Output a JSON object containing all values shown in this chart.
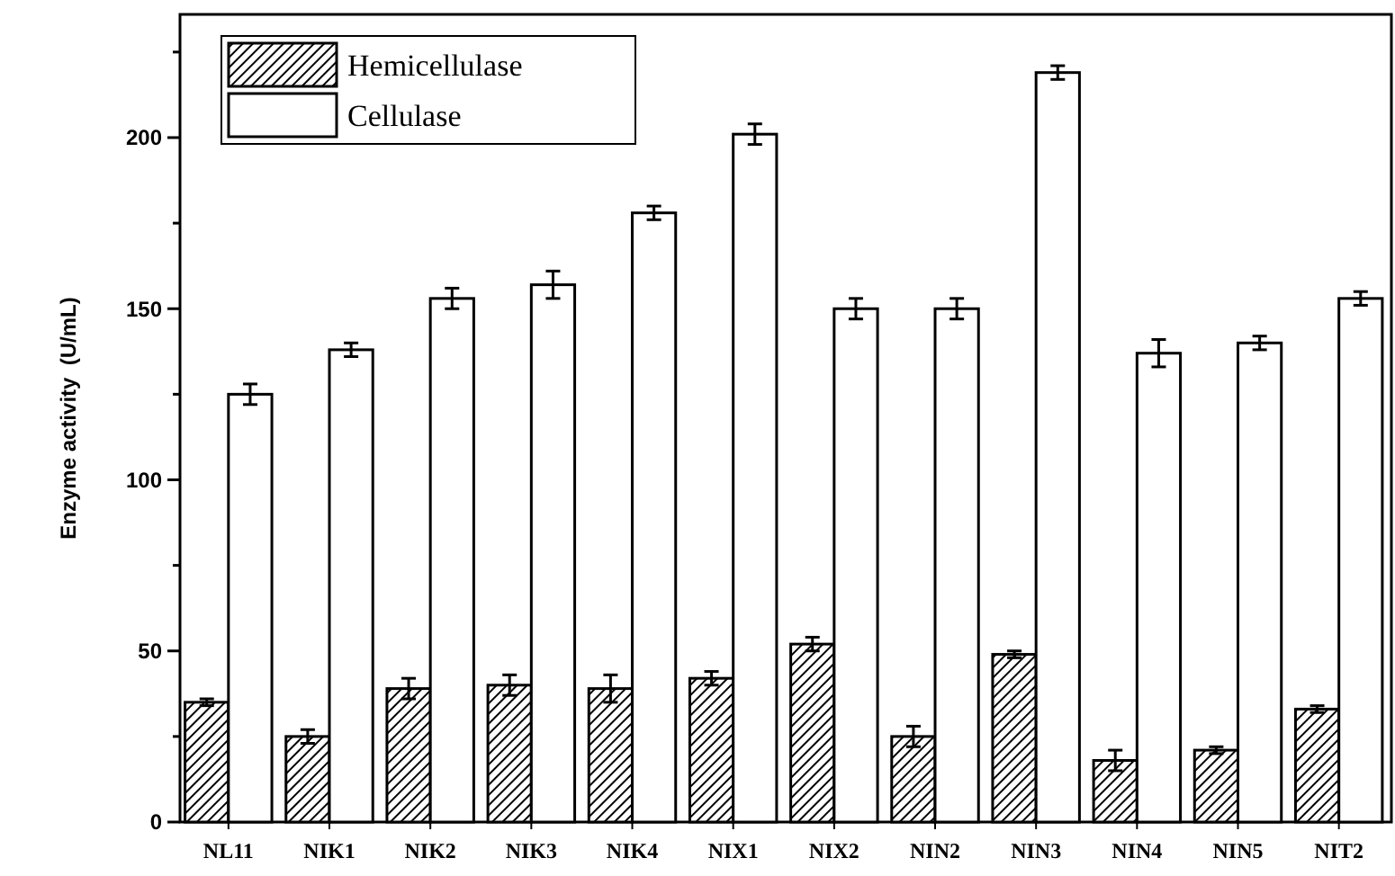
{
  "chart_data": {
    "type": "bar",
    "ylabel": "Enzyme activity  (U/mL)",
    "categories": [
      "NL11",
      "NIK1",
      "NIK2",
      "NIK3",
      "NIK4",
      "NIX1",
      "NIX2",
      "NIN2",
      "NIN3",
      "NIN4",
      "NIN5",
      "NIT2"
    ],
    "series": [
      {
        "name": "Hemicellulase",
        "color": "#000000",
        "values": [
          35,
          25,
          39,
          40,
          39,
          42,
          52,
          25,
          49,
          18,
          21,
          33
        ],
        "errors": [
          1,
          2,
          3,
          3,
          4,
          2,
          2,
          3,
          1,
          3,
          1,
          1
        ]
      },
      {
        "name": "Cellulase",
        "color": "#ffffff",
        "values": [
          125,
          138,
          153,
          157,
          178,
          201,
          150,
          150,
          219,
          137,
          140,
          153
        ],
        "errors": [
          3,
          2,
          3,
          4,
          2,
          3,
          3,
          3,
          2,
          4,
          2,
          2
        ]
      }
    ],
    "ylim": [
      0,
      236
    ],
    "yticks": [
      0,
      {
        "value": 25,
        "label": null
      },
      50,
      {
        "value": 75,
        "label": null
      },
      100,
      {
        "value": 125,
        "label": null
      },
      150,
      {
        "value": 175,
        "label": null
      },
      200,
      {
        "value": 225,
        "label": null
      }
    ],
    "legend": "top left"
  }
}
